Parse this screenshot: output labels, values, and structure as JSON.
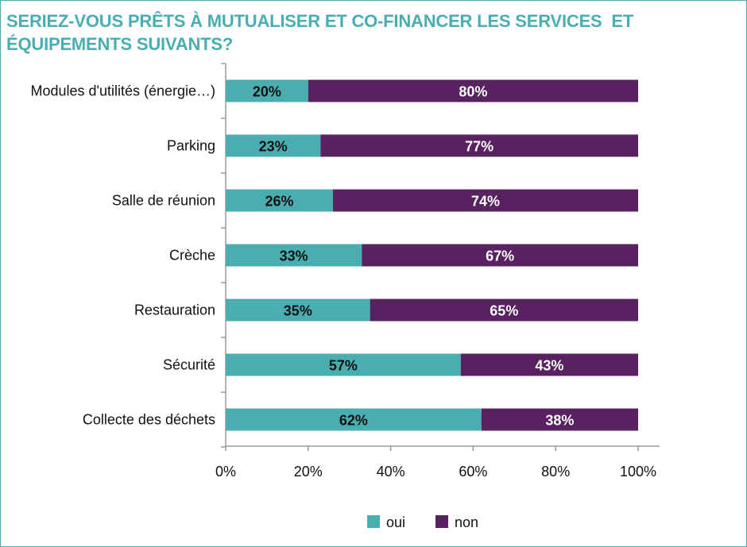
{
  "chart_data": {
    "type": "bar",
    "orientation": "horizontal",
    "stacked": true,
    "title": "SERIEZ-VOUS PRÊTS À MUTUALISER ET CO-FINANCER LES SERVICES  ET ÉQUIPEMENTS SUIVANTS?",
    "categories": [
      "Modules d'utilités (énergie…)",
      "Parking",
      "Salle de réunion",
      "Crèche",
      "Restauration",
      "Sécurité",
      "Collecte des déchets"
    ],
    "series": [
      {
        "name": "oui",
        "color": "#4aaeb0",
        "values": [
          20,
          23,
          26,
          33,
          35,
          57,
          62
        ],
        "labels": [
          "20%",
          "23%",
          "26%",
          "33%",
          "35%",
          "57%",
          "62%"
        ]
      },
      {
        "name": "non",
        "color": "#582160",
        "values": [
          80,
          77,
          74,
          67,
          65,
          43,
          38
        ],
        "labels": [
          "80%",
          "77%",
          "74%",
          "67%",
          "65%",
          "43%",
          "38%"
        ]
      }
    ],
    "xlim": [
      0,
      100
    ],
    "xticks": [
      "0%",
      "20%",
      "40%",
      "60%",
      "80%",
      "100%"
    ],
    "xlabel": "",
    "ylabel": "",
    "grid": false,
    "legend_position": "bottom"
  }
}
